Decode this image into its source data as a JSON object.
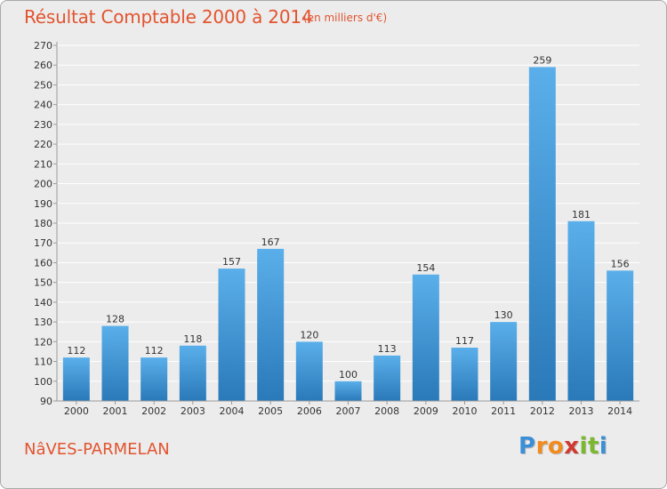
{
  "chart_data": {
    "type": "bar",
    "title": "Résultat Comptable 2000 à 2014",
    "subtitle": "(en milliers d'€)",
    "categories": [
      "2000",
      "2001",
      "2002",
      "2003",
      "2004",
      "2005",
      "2006",
      "2007",
      "2008",
      "2009",
      "2010",
      "2011",
      "2012",
      "2013",
      "2014"
    ],
    "values": [
      112,
      128,
      112,
      118,
      157,
      167,
      120,
      100,
      113,
      154,
      117,
      130,
      259,
      181,
      156
    ],
    "ylim": [
      90,
      270
    ],
    "yticks": [
      90,
      100,
      110,
      120,
      130,
      140,
      150,
      160,
      170,
      180,
      190,
      200,
      210,
      220,
      230,
      240,
      250,
      260,
      270
    ],
    "grid": true,
    "xlabel": "",
    "ylabel": ""
  },
  "footer": {
    "place_name": "NâVES-PARMELAN",
    "logo_letters": [
      "P",
      "r",
      "o",
      "x",
      "i",
      "t",
      "i"
    ]
  },
  "colors": {
    "accent": "#e2542f",
    "bar_top": "#5aafea",
    "bar_bottom": "#2a79b9",
    "logo": [
      "#3b8fd6",
      "#f28b1e",
      "#f28b1e",
      "#d0392f",
      "#7cb82f",
      "#7cb82f",
      "#3b8fd6"
    ]
  }
}
